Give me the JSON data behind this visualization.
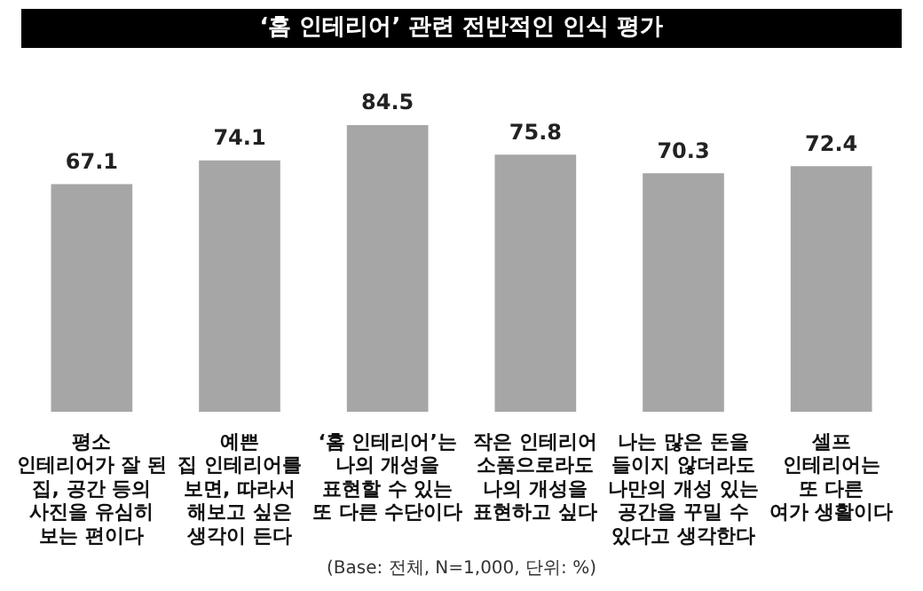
{
  "chart_data": {
    "type": "bar",
    "title": "‘홈 인테리어’ 관련 전반적인 인식 평가",
    "categories": [
      "평소\n인테리어가 잘 된\n집, 공간 등의\n사진을 유심히\n보는 편이다",
      "예쁜\n집 인테리어를\n보면, 따라서\n해보고 싶은\n생각이 든다",
      "‘홈 인테리어’는\n나의 개성을\n표현할 수 있는\n또 다른 수단이다",
      "작은 인테리어\n소품으로라도\n나의 개성을\n표현하고 싶다",
      "나는 많은 돈을\n들이지 않더라도\n나만의 개성 있는\n공간을 꾸밀 수\n있다고 생각한다",
      "셀프\n인테리어는\n또 다른\n여가 생활이다"
    ],
    "values": [
      67.1,
      74.1,
      84.5,
      75.8,
      70.3,
      72.4
    ],
    "color": "#a6a6a6",
    "data_labels": true,
    "annotations": [
      "(Base: 전체, N=1,000, 단위: %)"
    ]
  }
}
